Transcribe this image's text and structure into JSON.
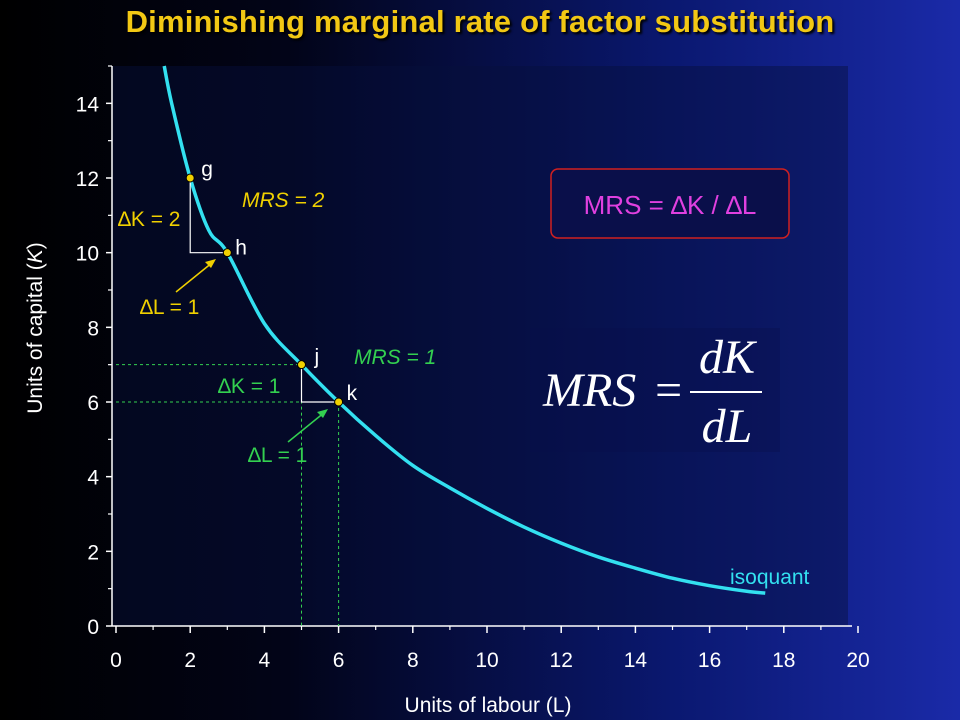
{
  "title": "Diminishing marginal rate of factor substitution",
  "chart_data": {
    "type": "line",
    "xlabel": "Units of labour (L)",
    "ylabel_parts": [
      "Units of capital (",
      "K",
      ")"
    ],
    "xlim": [
      0,
      20
    ],
    "ylim": [
      0,
      15
    ],
    "x_ticks": [
      0,
      2,
      4,
      6,
      8,
      10,
      12,
      14,
      16,
      18,
      20
    ],
    "y_ticks": [
      0,
      2,
      4,
      6,
      8,
      10,
      12,
      14
    ],
    "series": [
      {
        "name": "isoquant",
        "x": [
          1.3,
          1.5,
          2,
          2.5,
          3,
          4,
          5,
          6,
          7,
          8,
          9,
          10,
          11,
          12,
          13,
          14,
          15,
          16,
          17,
          17.5
        ],
        "y": [
          15,
          14.0,
          12,
          10.6,
          10,
          8.1,
          7,
          6,
          5.1,
          4.3,
          3.7,
          3.15,
          2.65,
          2.22,
          1.85,
          1.55,
          1.28,
          1.08,
          0.93,
          0.88
        ]
      }
    ],
    "points": [
      {
        "label": "g",
        "x": 2,
        "y": 12
      },
      {
        "label": "h",
        "x": 3,
        "y": 10
      },
      {
        "label": "j",
        "x": 5,
        "y": 7
      },
      {
        "label": "k",
        "x": 6,
        "y": 6
      }
    ],
    "annotations": {
      "dk_top": "∆K = 2",
      "dl_top": "∆L = 1",
      "mrs_top": "MRS = 2",
      "dk_bottom": "∆K = 1",
      "dl_bottom": "∆L = 1",
      "mrs_bottom": "MRS = 1",
      "isoquant_label": "isoquant",
      "box_formula": "MRS = ∆K / ∆L",
      "frac_lhs": "MRS",
      "frac_eq": "=",
      "frac_num": "dK",
      "frac_den": "dL"
    },
    "colors": {
      "curve": "#33e0f0",
      "point": "#f0d000",
      "top_annotation": "#f0d000",
      "bottom_annotation": "#33d050",
      "box_text": "#e040e0",
      "box_border": "#d02020"
    }
  }
}
